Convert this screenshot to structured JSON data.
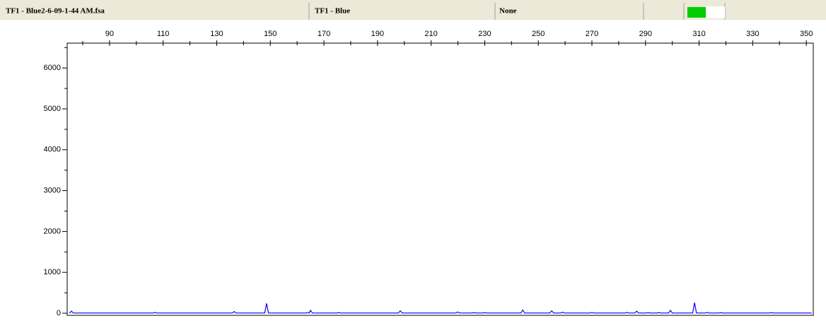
{
  "header": {
    "cells": [
      "TF1 - Blue2-6-09-1-44 AM.fsa",
      "TF1 - Blue",
      "None"
    ]
  },
  "chart_data": {
    "type": "line",
    "x": [
      75,
      75.1,
      75.8,
      76.5,
      106.2,
      106.9,
      107.6,
      135.8,
      136.5,
      137.2,
      147.9,
      148.6,
      149.3,
      163.4,
      164.0,
      164.5,
      165.0,
      165.7,
      174.8,
      175.5,
      176.2,
      197.8,
      198.5,
      199.2,
      219.2,
      219.9,
      220.6,
      225.3,
      226.0,
      226.7,
      229.3,
      230.0,
      230.7,
      243.5,
      244.2,
      244.9,
      254.3,
      255.0,
      255.7,
      258.3,
      259.0,
      259.7,
      269.3,
      270.0,
      270.7,
      282.3,
      283.0,
      283.7,
      286.0,
      286.7,
      287.4,
      290.3,
      291.0,
      291.7,
      294.3,
      295.0,
      295.7,
      298.6,
      299.3,
      300.0,
      307.6,
      308.3,
      309.0,
      312.3,
      313.0,
      313.7,
      317.3,
      318.0,
      318.7,
      336.3,
      337.0,
      337.7,
      352
    ],
    "series": [
      {
        "color": "#0000ff",
        "values": [
          5,
          5,
          50,
          5,
          5,
          20,
          5,
          5,
          40,
          5,
          5,
          240,
          5,
          5,
          20,
          5,
          70,
          5,
          5,
          15,
          5,
          5,
          60,
          5,
          5,
          30,
          5,
          5,
          15,
          5,
          5,
          15,
          5,
          5,
          80,
          5,
          5,
          60,
          5,
          5,
          25,
          5,
          5,
          20,
          5,
          5,
          20,
          5,
          5,
          50,
          5,
          5,
          15,
          5,
          5,
          15,
          5,
          5,
          70,
          5,
          5,
          260,
          5,
          5,
          20,
          5,
          5,
          15,
          5,
          5,
          15,
          5,
          5
        ]
      }
    ],
    "xlim": [
      74.2,
      352.6
    ],
    "xticks": [
      90,
      110,
      130,
      150,
      170,
      190,
      210,
      230,
      250,
      270,
      290,
      310,
      330,
      350
    ],
    "x_minor_ticks": [
      80,
      100,
      120,
      140,
      160,
      180,
      200,
      220,
      240,
      260,
      280,
      300,
      320,
      340
    ],
    "ylim": [
      -52,
      6609
    ],
    "yticks": [
      0,
      1000,
      2000,
      3000,
      4000,
      5000,
      6000
    ],
    "y_minor_ticks": [
      500,
      1500,
      2500,
      3500,
      4500,
      5500,
      6500
    ]
  }
}
